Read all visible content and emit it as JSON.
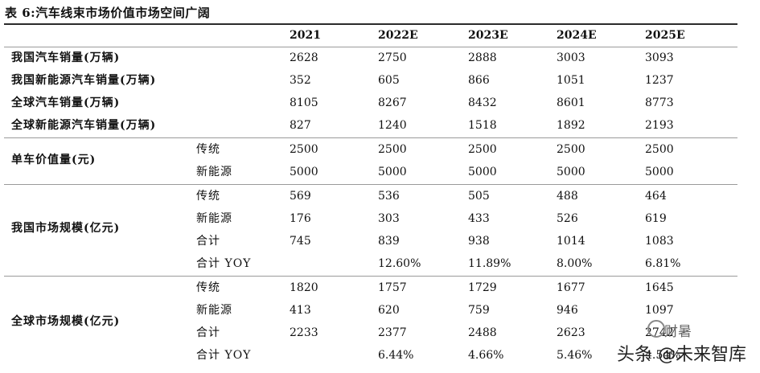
{
  "title": "表 6:汽车线束市场价值市场空间广阔",
  "columns": [
    "2021",
    "2022E",
    "2023E",
    "2024E",
    "2025E"
  ],
  "simple_rows": [
    {
      "label": "我国汽车销量(万辆)",
      "values": [
        "2628",
        "2750",
        "2888",
        "3003",
        "3093"
      ]
    },
    {
      "label": "我国新能源汽车销量(万辆)",
      "values": [
        "352",
        "605",
        "866",
        "1051",
        "1237"
      ]
    },
    {
      "label": "全球汽车销量(万辆)",
      "values": [
        "8105",
        "8267",
        "8432",
        "8601",
        "8773"
      ]
    },
    {
      "label": "全球新能源汽车销量(万辆)",
      "values": [
        "827",
        "1240",
        "1518",
        "1892",
        "2193"
      ]
    }
  ],
  "unit_value": {
    "label": "单车价值量(元)",
    "rows": [
      {
        "sub": "传统",
        "values": [
          "2500",
          "2500",
          "2500",
          "2500",
          "2500"
        ]
      },
      {
        "sub": "新能源",
        "values": [
          "5000",
          "5000",
          "5000",
          "5000",
          "5000"
        ]
      }
    ]
  },
  "china_market": {
    "label": "我国市场规模(亿元)",
    "rows": [
      {
        "sub": "传统",
        "values": [
          "569",
          "536",
          "505",
          "488",
          "464"
        ]
      },
      {
        "sub": "新能源",
        "values": [
          "176",
          "303",
          "433",
          "526",
          "619"
        ]
      },
      {
        "sub": "合计",
        "values": [
          "745",
          "839",
          "938",
          "1014",
          "1083"
        ]
      },
      {
        "sub": "合计 YOY",
        "values": [
          "",
          "12.60%",
          "11.89%",
          "8.00%",
          "6.81%"
        ]
      }
    ]
  },
  "global_market": {
    "label": "全球市场规模(亿元)",
    "rows": [
      {
        "sub": "传统",
        "values": [
          "1820",
          "1757",
          "1729",
          "1677",
          "1645"
        ]
      },
      {
        "sub": "新能源",
        "values": [
          "413",
          "620",
          "759",
          "946",
          "1097"
        ]
      },
      {
        "sub": "合计",
        "values": [
          "2233",
          "2377",
          "2488",
          "2623",
          "2742"
        ]
      },
      {
        "sub": "合计 YOY",
        "values": [
          "",
          "6.44%",
          "4.66%",
          "5.46%",
          "4.54%"
        ]
      }
    ]
  },
  "watermark": {
    "line1": "财暑",
    "line2": "头条 @未来智库"
  }
}
